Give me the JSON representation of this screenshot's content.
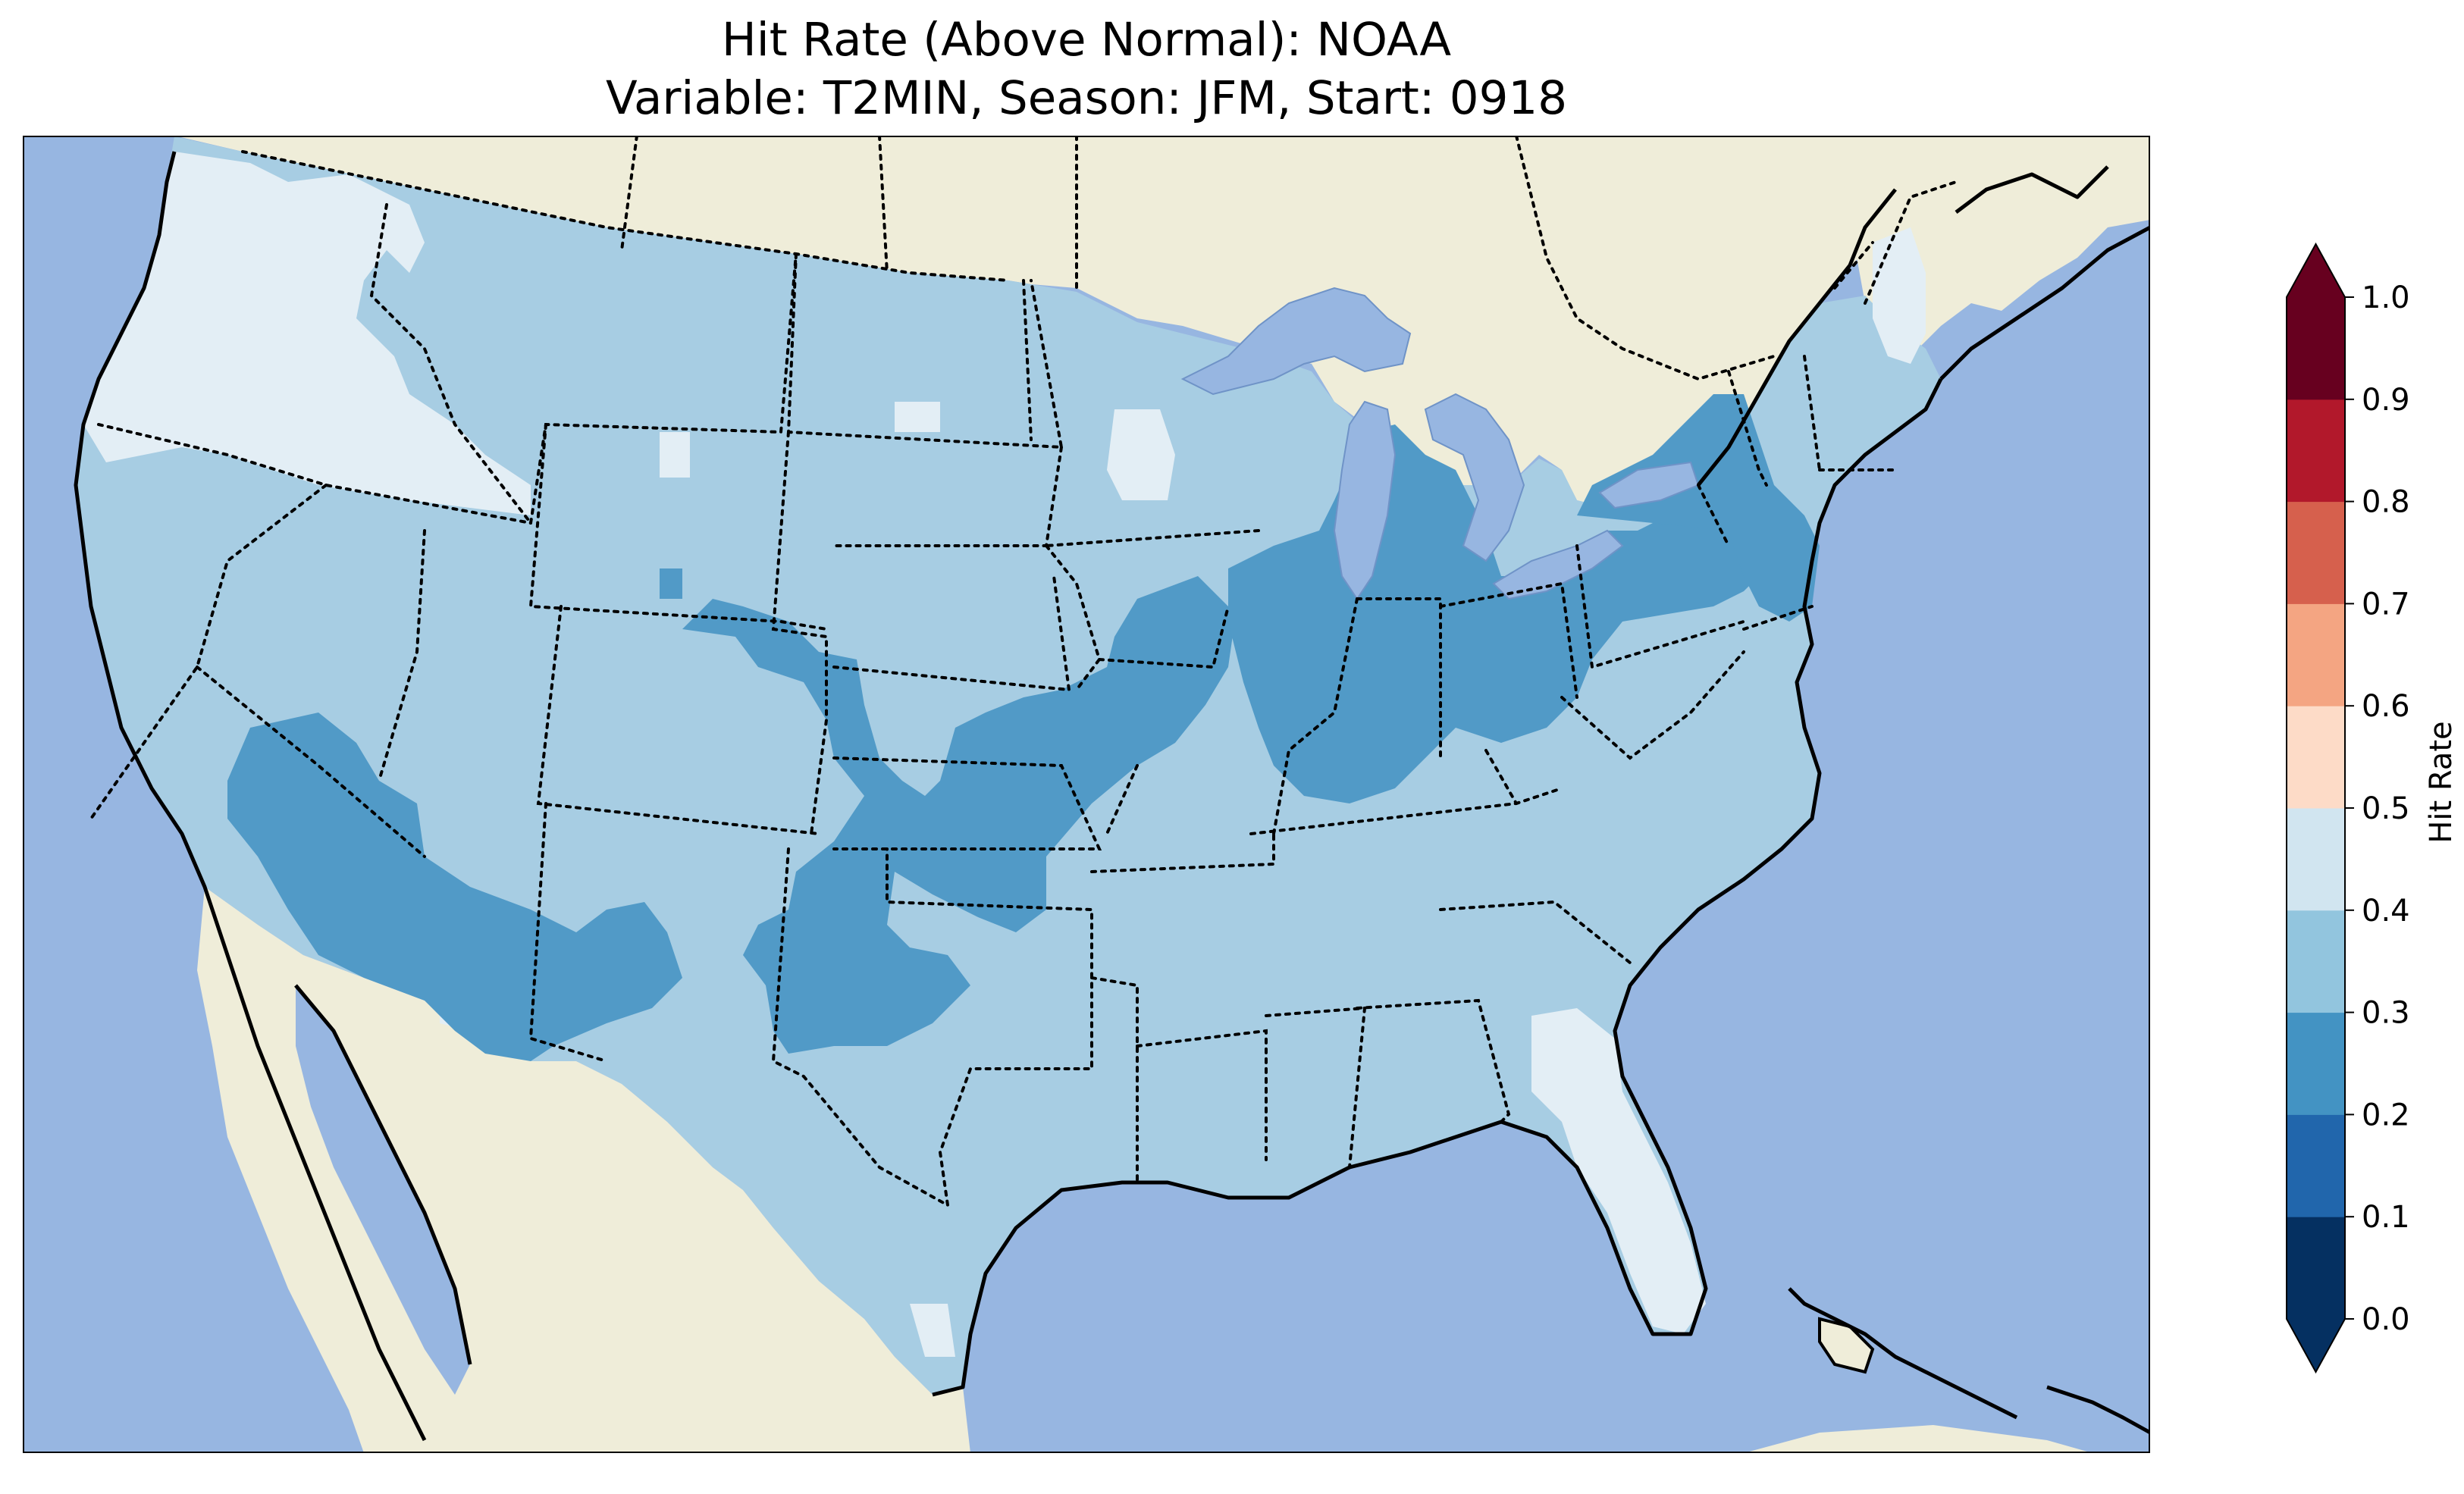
{
  "title": {
    "line1": "Hit Rate (Above Normal): NOAA",
    "line2": "Variable: T2MIN, Season: JFM, Start: 0918"
  },
  "colorbar": {
    "label": "Hit Rate",
    "ticks": [
      "0.0",
      "0.1",
      "0.2",
      "0.3",
      "0.4",
      "0.5",
      "0.6",
      "0.7",
      "0.8",
      "0.9",
      "1.0"
    ],
    "colors": [
      "#053061",
      "#2166ac",
      "#4393c3",
      "#92c5de",
      "#d1e5f0",
      "#fddbc7",
      "#f4a582",
      "#d6604d",
      "#b2182b",
      "#67001f"
    ],
    "extend": "both"
  },
  "map_colors": {
    "ocean": "#97b6e1",
    "land": "#efedd9",
    "lakes": "#97b6e1",
    "bin_0_2_to_0_3": "#519ac7",
    "bin_0_3_to_0_4": "#a7cde3",
    "bin_0_4_to_0_5": "#e3eef5"
  },
  "regions": [
    {
      "name": "Pacific Northwest coast",
      "bin": "0.4-0.5"
    },
    {
      "name": "Great Plains / West",
      "bin": "0.3-0.4"
    },
    {
      "name": "Ohio Valley",
      "bin": "0.2-0.3"
    },
    {
      "name": "Southwest",
      "bin": "0.2-0.3"
    },
    {
      "name": "Southern Plains",
      "bin": "0.2-0.3"
    },
    {
      "name": "Pennsylvania / New Jersey",
      "bin": "0.2-0.3"
    },
    {
      "name": "Florida / Maine",
      "bin": "0.4-0.5"
    }
  ]
}
